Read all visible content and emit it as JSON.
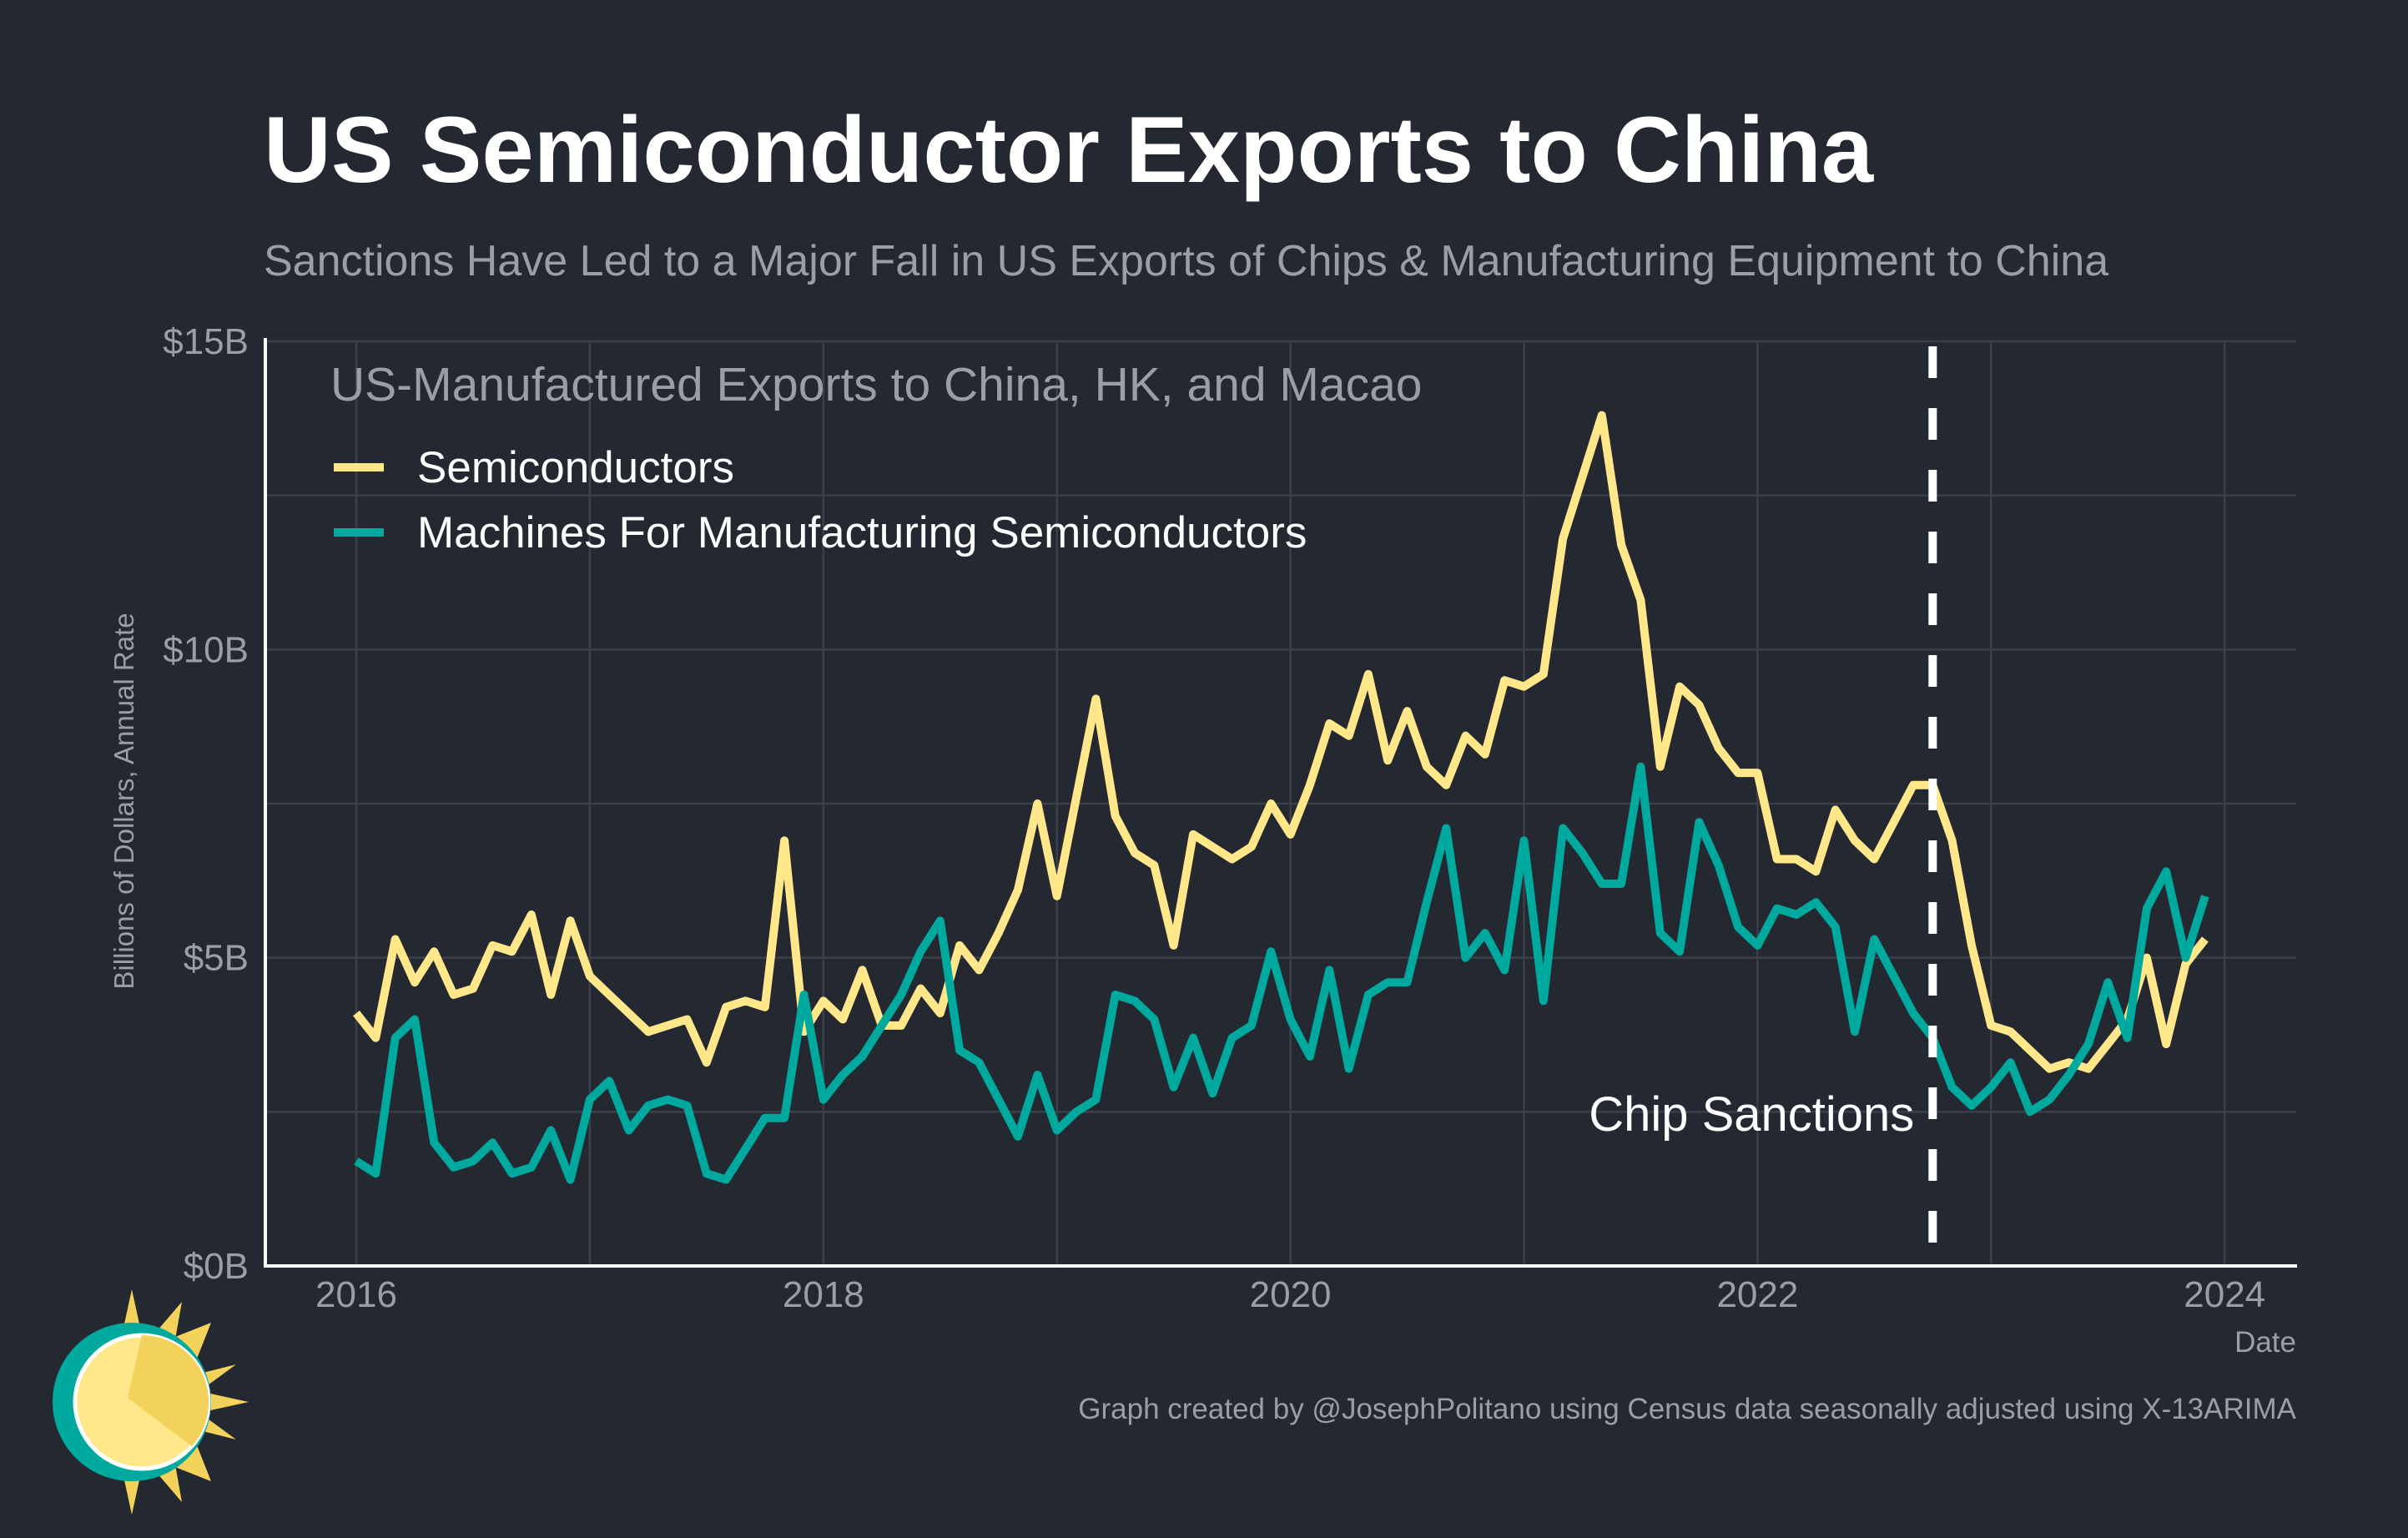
{
  "chart_data": {
    "type": "line",
    "title": "US Semiconductor Exports to China",
    "subtitle": "Sanctions Have Led to a Major Fall in US Exports of Chips & Manufacturing Equipment to China",
    "xlabel": "Date",
    "ylabel": "Billions of Dollars, Annual Rate",
    "legend_title": "US-Manufactured Exports to China, HK, and Macao",
    "legend_position": "top-left",
    "grid": true,
    "xlim": [
      2015.6,
      2024.35
    ],
    "ylim": [
      0,
      15
    ],
    "x_ticks": [
      "2016",
      "2018",
      "2020",
      "2022",
      "2024"
    ],
    "x_tick_values": [
      2016,
      2018,
      2020,
      2022,
      2024
    ],
    "y_ticks": [
      "$0B",
      "$5B",
      "$10B",
      "$15B"
    ],
    "y_tick_values": [
      0,
      5,
      10,
      15
    ],
    "x_start": "2016-01",
    "frequency": "monthly",
    "series": [
      {
        "name": "Semiconductors",
        "color": "#ffe78a",
        "values": [
          4.1,
          3.7,
          5.3,
          4.6,
          5.1,
          4.4,
          4.5,
          5.2,
          5.1,
          5.7,
          4.4,
          5.6,
          4.7,
          4.4,
          4.1,
          3.8,
          3.9,
          4.0,
          3.3,
          4.2,
          4.3,
          4.2,
          6.9,
          3.8,
          4.3,
          4.0,
          4.8,
          3.9,
          3.9,
          4.5,
          4.1,
          5.2,
          4.8,
          5.4,
          6.1,
          7.5,
          6.0,
          7.6,
          9.2,
          7.3,
          6.7,
          6.5,
          5.2,
          7.0,
          6.8,
          6.6,
          6.8,
          7.5,
          7.0,
          7.8,
          8.8,
          8.6,
          9.6,
          8.2,
          9.0,
          8.1,
          7.8,
          8.6,
          8.3,
          9.5,
          9.4,
          9.6,
          11.8,
          12.8,
          13.8,
          11.7,
          10.8,
          8.1,
          9.4,
          9.1,
          8.4,
          8.0,
          8.0,
          6.6,
          6.6,
          6.4,
          7.4,
          6.9,
          6.6,
          7.2,
          7.8,
          7.8,
          6.9,
          5.2,
          3.9,
          3.8,
          3.5,
          3.2,
          3.3,
          3.2,
          3.6,
          4.0,
          5.0,
          3.6,
          4.9,
          5.3
        ]
      },
      {
        "name": "Machines For Manufacturing Semiconductors",
        "color": "#00a99d",
        "values": [
          1.7,
          1.5,
          3.7,
          4.0,
          2.0,
          1.6,
          1.7,
          2.0,
          1.5,
          1.6,
          2.2,
          1.4,
          2.7,
          3.0,
          2.2,
          2.6,
          2.7,
          2.6,
          1.5,
          1.4,
          1.9,
          2.4,
          2.4,
          4.4,
          2.7,
          3.1,
          3.4,
          3.9,
          4.4,
          5.1,
          5.6,
          3.5,
          3.3,
          2.7,
          2.1,
          3.1,
          2.2,
          2.5,
          2.7,
          4.4,
          4.3,
          4.0,
          2.9,
          3.7,
          2.8,
          3.7,
          3.9,
          5.1,
          4.0,
          3.4,
          4.8,
          3.2,
          4.4,
          4.6,
          4.6,
          5.9,
          7.1,
          5.0,
          5.4,
          4.8,
          6.9,
          4.3,
          7.1,
          6.7,
          6.2,
          6.2,
          8.1,
          5.4,
          5.1,
          7.2,
          6.5,
          5.5,
          5.2,
          5.8,
          5.7,
          5.9,
          5.5,
          3.8,
          5.3,
          4.7,
          4.1,
          3.7,
          2.9,
          2.6,
          2.9,
          3.3,
          2.5,
          2.7,
          3.1,
          3.6,
          4.6,
          3.7,
          5.8,
          6.4,
          5.0,
          6.0
        ]
      }
    ],
    "annotations": [
      {
        "label": "Chip Sanctions",
        "x": "2022-10",
        "style": "dashed-vertical-line",
        "color": "#ffffff"
      }
    ],
    "credit": "Graph created by @JosephPolitano using Census data seasonally adjusted using X-13ARIMA"
  },
  "colors": {
    "background": "#242831",
    "grid": "#3b3f49",
    "muted_text": "#9a9ea6"
  },
  "logo": {
    "icon": "sun-logo-icon"
  }
}
